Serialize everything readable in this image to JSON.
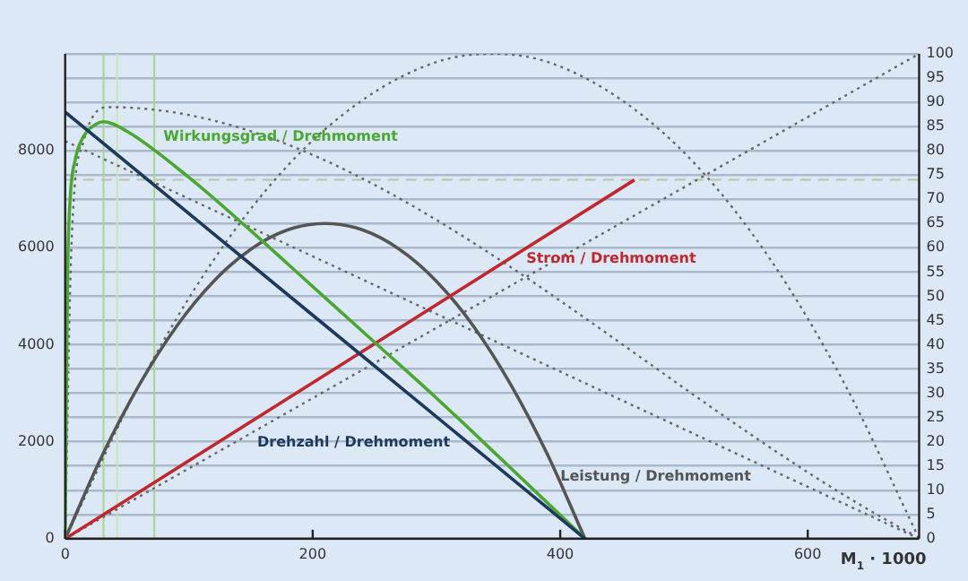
{
  "chart_data": {
    "type": "line",
    "xlabel": "M$_{1}$ · 1000",
    "xlim": [
      0,
      690
    ],
    "xticks": [
      0,
      200,
      400,
      600
    ],
    "ylim": [
      0,
      10000
    ],
    "yticks": [
      0,
      2000,
      4000,
      6000,
      8000
    ],
    "y2lim": [
      0,
      100
    ],
    "y2ticks": [
      0,
      5,
      10,
      15,
      20,
      25,
      30,
      35,
      40,
      45,
      50,
      55,
      60,
      65,
      70,
      75,
      80,
      85,
      90,
      95,
      100
    ],
    "grid": "y2",
    "legend": false,
    "marker": "none",
    "series": [
      {
        "name": "Drehzahl / Drehmoment",
        "color": "#1d3a5c",
        "x": [
          0,
          420
        ],
        "values": [
          8800,
          0
        ]
      },
      {
        "name": "Wirkungsgrad / Drehmoment",
        "color": "#4aa832",
        "axis": "y2",
        "x": [
          0,
          1,
          2,
          4,
          8,
          15,
          25,
          31,
          50,
          100,
          150,
          200,
          250,
          300,
          350,
          420
        ],
        "values": [
          0,
          30,
          55,
          70,
          78,
          83,
          85.5,
          86,
          84,
          74.5,
          63.5,
          52,
          40.5,
          29,
          17,
          0
        ]
      },
      {
        "name": "Strom / Drehmoment",
        "color": "#c0282e",
        "axis": "y2",
        "x": [
          0,
          460
        ],
        "values": [
          0,
          74
        ]
      },
      {
        "name": "Leistung / Drehmoment",
        "color": "#555555",
        "axis": "y2",
        "x": [
          0,
          30,
          60,
          90,
          120,
          150,
          180,
          210,
          240,
          270,
          300,
          330,
          360,
          390,
          420
        ],
        "values": [
          0,
          17.2,
          31.8,
          43.8,
          53.1,
          59.7,
          63.7,
          65,
          63.7,
          59.7,
          53.1,
          43.8,
          31.8,
          17.2,
          0
        ]
      },
      {
        "color": "#666666",
        "axis": "y2",
        "line_style": "dotted",
        "x": [
          0,
          60,
          120,
          180,
          240,
          300,
          345,
          390,
          450,
          510,
          570,
          630,
          690
        ],
        "values": [
          0,
          31.8,
          57.5,
          77,
          90.4,
          98.3,
          100,
          98.3,
          90.4,
          77,
          57.5,
          31.8,
          0
        ]
      },
      {
        "color": "#666666",
        "axis": "y2",
        "line_style": "dotted",
        "x": [
          0,
          690
        ],
        "values": [
          0,
          100
        ]
      },
      {
        "color": "#666666",
        "axis": "y2",
        "line_style": "dotted",
        "x": [
          0,
          5,
          15,
          36,
          684
        ],
        "values": [
          0,
          60,
          82,
          89,
          1
        ]
      },
      {
        "color": "#666666",
        "axis": "y2",
        "line_style": "dotted",
        "x": [
          0,
          690
        ],
        "values": [
          82,
          0
        ]
      }
    ],
    "ref_lines": [
      {
        "axis": "x",
        "value": 31,
        "color": "#a6d68f"
      },
      {
        "axis": "x",
        "value": 42,
        "color": "#c8e6b8"
      },
      {
        "axis": "x",
        "value": 72,
        "color": "#a6d68f"
      },
      {
        "axis": "y2",
        "value": 74,
        "color": "#b9c2a8",
        "line_style": "dashed"
      }
    ]
  }
}
